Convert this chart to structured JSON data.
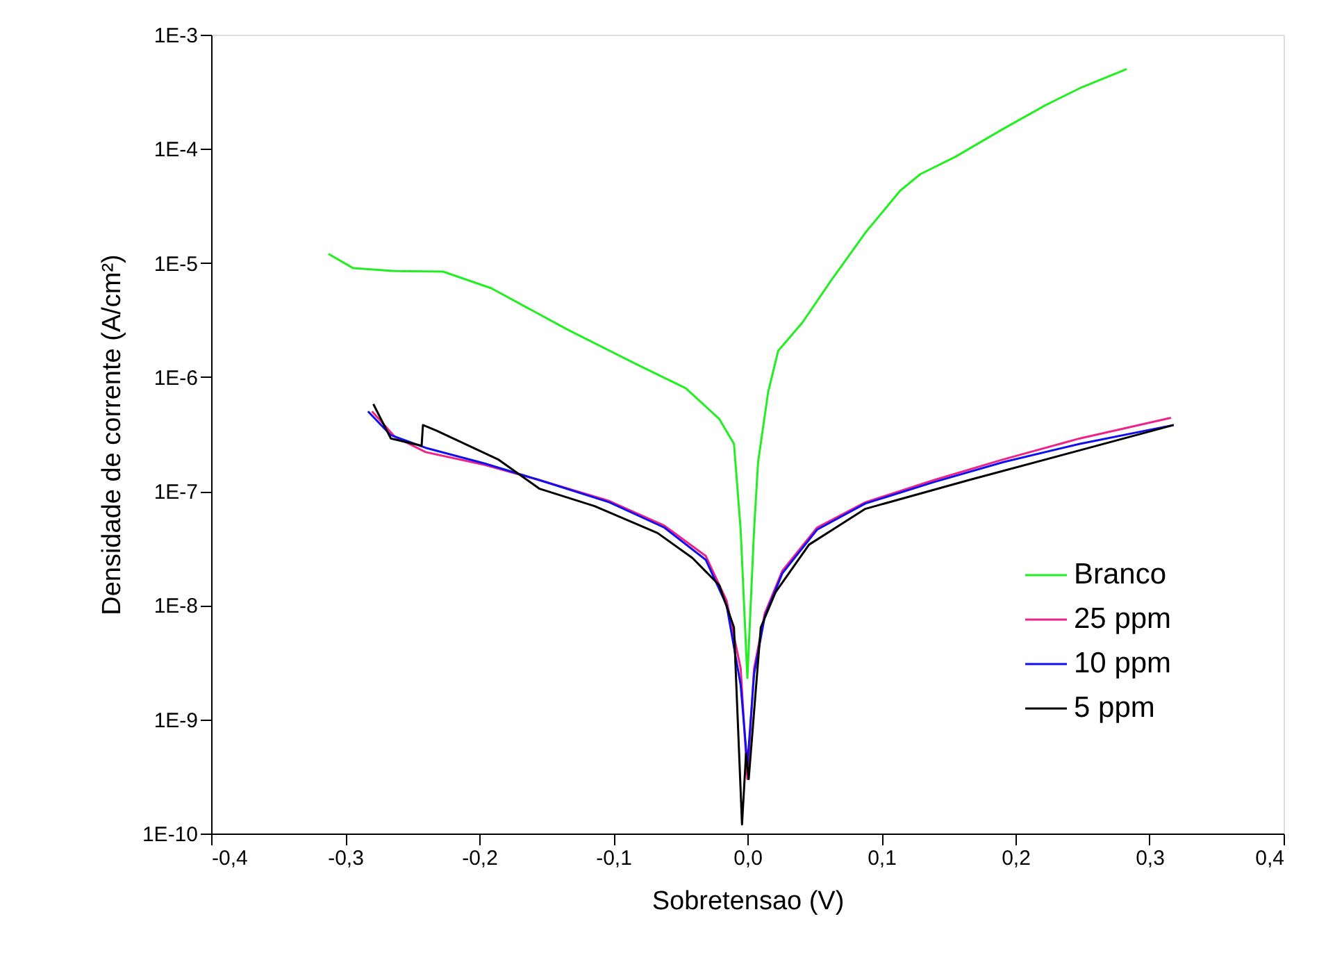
{
  "chart_data": {
    "type": "line",
    "xlabel": "Sobretensao (V)",
    "ylabel": "Densidade de corrente (A/cm²)",
    "log": "y",
    "xlim": [
      -0.4,
      0.4
    ],
    "ylim": [
      1e-10,
      0.001
    ],
    "xticks": [
      {
        "value": -0.4,
        "label": "-0,4"
      },
      {
        "value": -0.3,
        "label": "-0,3"
      },
      {
        "value": -0.2,
        "label": "-0,2"
      },
      {
        "value": -0.1,
        "label": "-0,1"
      },
      {
        "value": 0,
        "label": "0,0"
      },
      {
        "value": 0.1,
        "label": "0,1"
      },
      {
        "value": 0.2,
        "label": "0,2"
      },
      {
        "value": 0.3,
        "label": "0,3"
      },
      {
        "value": 0.4,
        "label": "0,4"
      }
    ],
    "yticks": [
      {
        "value": 1e-10,
        "label": "1E-10"
      },
      {
        "value": 1e-09,
        "label": "1E-9"
      },
      {
        "value": 1e-08,
        "label": "1E-8"
      },
      {
        "value": 1e-07,
        "label": "1E-7"
      },
      {
        "value": 1e-06,
        "label": "1E-6"
      },
      {
        "value": 1e-05,
        "label": "1E-5"
      },
      {
        "value": 0.0001,
        "label": "1E-4"
      },
      {
        "value": 0.001,
        "label": "1E-3"
      }
    ],
    "grid": false,
    "legend": "bottom right",
    "line_style": "solid",
    "marker": "none",
    "series": [
      {
        "name": "Branco",
        "color": "#22ee22",
        "x": [
          -0.3125,
          -0.294,
          -0.263,
          -0.227,
          -0.191,
          -0.134,
          -0.083,
          -0.046,
          -0.021,
          -0.01,
          -0.005,
          0.0,
          0.005,
          0.008,
          0.0155,
          0.023,
          0.041,
          0.062,
          0.088,
          0.114,
          0.129,
          0.155,
          0.191,
          0.222,
          0.248,
          0.283
        ],
        "values": [
          1.2e-05,
          9e-06,
          8.5e-06,
          8.4e-06,
          6e-06,
          2.6e-06,
          1.3e-06,
          8e-07,
          4.3e-07,
          2.6e-07,
          4.6e-08,
          2.3e-09,
          4.6e-08,
          1.8e-07,
          7.4e-07,
          1.7e-06,
          3e-06,
          6.9e-06,
          1.84e-05,
          4.3e-05,
          6e-05,
          8.5e-05,
          0.00015,
          0.00024,
          0.00034,
          0.0005
        ]
      },
      {
        "name": "25 ppm",
        "color": "#ee2288",
        "x": [
          -0.28,
          -0.263,
          -0.24,
          -0.196,
          -0.155,
          -0.103,
          -0.062,
          -0.031,
          -0.0155,
          -0.005,
          0.0,
          0.005,
          0.013,
          0.026,
          0.052,
          0.088,
          0.139,
          0.191,
          0.248,
          0.316
        ],
        "values": [
          5e-07,
          3e-07,
          2.2e-07,
          1.7e-07,
          1.25e-07,
          8.2e-08,
          5e-08,
          2.7e-08,
          1.1e-08,
          2.8e-09,
          3e-10,
          2.8e-09,
          8.5e-09,
          2e-08,
          4.8e-08,
          8e-08,
          1.25e-07,
          1.9e-07,
          2.9e-07,
          4.4e-07
        ]
      },
      {
        "name": "10 ppm",
        "color": "#1010ee",
        "x": [
          -0.283,
          -0.266,
          -0.24,
          -0.196,
          -0.155,
          -0.103,
          -0.062,
          -0.031,
          -0.0155,
          -0.005,
          0.0,
          0.005,
          0.013,
          0.026,
          0.052,
          0.088,
          0.139,
          0.191,
          0.248,
          0.318
        ],
        "values": [
          5e-07,
          3.1e-07,
          2.4e-07,
          1.75e-07,
          1.25e-07,
          8e-08,
          4.8e-08,
          2.5e-08,
          1e-08,
          2e-09,
          4e-10,
          2.5e-09,
          8e-09,
          1.9e-08,
          4.6e-08,
          7.8e-08,
          1.2e-07,
          1.8e-07,
          2.6e-07,
          3.8e-07
        ]
      },
      {
        "name": "5 ppm",
        "color": "#000000",
        "x": [
          -0.279,
          -0.266,
          -0.243,
          -0.242,
          -0.232,
          -0.186,
          -0.155,
          -0.114,
          -0.067,
          -0.041,
          -0.021,
          -0.01,
          -0.004,
          -0.001,
          0.001,
          0.01,
          0.021,
          0.046,
          0.088,
          0.165,
          0.243,
          0.318
        ],
        "values": [
          5.8e-07,
          2.9e-07,
          2.5e-07,
          3.8e-07,
          3.4e-07,
          1.9e-07,
          1.05e-07,
          7.4e-08,
          4.3e-08,
          2.6e-08,
          1.5e-08,
          6.4e-09,
          1.2e-10,
          5e-10,
          3e-10,
          6.4e-09,
          1.3e-08,
          3.4e-08,
          7e-08,
          1.25e-07,
          2.2e-07,
          3.8e-07
        ]
      }
    ]
  }
}
